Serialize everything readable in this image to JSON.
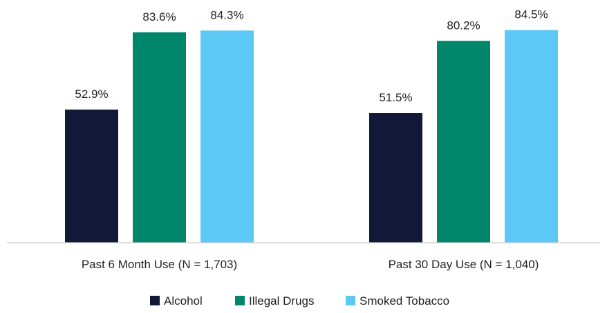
{
  "chart_data": {
    "type": "bar",
    "categories": [
      "Past 6 Month Use (N = 1,703)",
      "Past 30 Day Use (N = 1,040)"
    ],
    "series": [
      {
        "name": "Alcohol",
        "values": [
          52.9,
          51.5
        ],
        "labels": [
          "52.9%",
          "51.5%"
        ],
        "color": "#111838"
      },
      {
        "name": "Illegal Drugs",
        "values": [
          83.6,
          80.2
        ],
        "labels": [
          "83.6%",
          "80.2%"
        ],
        "color": "#00866A"
      },
      {
        "name": "Smoked Tobacco",
        "values": [
          84.3,
          84.5
        ],
        "labels": [
          "84.3%",
          "84.5%"
        ],
        "color": "#5BC8F5"
      }
    ],
    "ylim": [
      0,
      100
    ],
    "grid": false,
    "legend_position": "bottom",
    "title": "",
    "xlabel": "",
    "ylabel": ""
  }
}
